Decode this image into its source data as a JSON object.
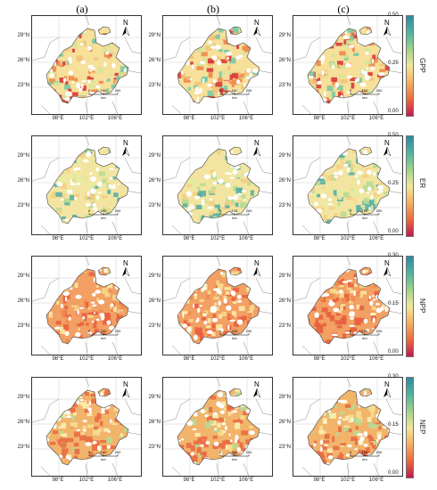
{
  "columns": [
    {
      "id": "a",
      "label": "(a)"
    },
    {
      "id": "b",
      "label": "(b)"
    },
    {
      "id": "c",
      "label": "(c)"
    }
  ],
  "rows": [
    {
      "variable": "GPP",
      "ticks": [
        "0.50",
        "0.25",
        "0.00"
      ]
    },
    {
      "variable": "ER",
      "ticks": [
        "0.50",
        "0.25",
        "0.00"
      ]
    },
    {
      "variable": "NPP",
      "ticks": [
        "0.30",
        "0.15",
        "0.00"
      ]
    },
    {
      "variable": "NEP",
      "ticks": [
        "0.30",
        "0.15",
        "0.00"
      ]
    }
  ],
  "latitude_labels": [
    "29°N",
    "26°N",
    "23°N"
  ],
  "longitude_labels": [
    "98°E",
    "102°E",
    "106°E"
  ],
  "north_arrow": {
    "letter": "N",
    "icon": "north-arrow-icon"
  },
  "scale_bar": {
    "ticks": [
      "0",
      "100",
      "200"
    ],
    "unit": "km"
  },
  "colorbar_colors": [
    "#2d8aa0",
    "#4fb5a0",
    "#9fd38a",
    "#f2e79a",
    "#f7b05e",
    "#ed6a3a",
    "#c4174e"
  ],
  "tint_palette": {
    "gpp": [
      "#f6e09a",
      "#f4c27a",
      "#ee8a4c",
      "#d9393a",
      "#7ec9a4",
      "#d3e59a"
    ],
    "er": [
      "#f3e5a1",
      "#f5cf85",
      "#b9dc92",
      "#57b0a6",
      "#e6ec9f"
    ],
    "npp": [
      "#f2a064",
      "#e8603e",
      "#f6d98c",
      "#ef8a4e",
      "#fde8a6"
    ],
    "nep": [
      "#f2b46b",
      "#e96c42",
      "#f6de92",
      "#b8d993",
      "#fbeeb1"
    ]
  }
}
